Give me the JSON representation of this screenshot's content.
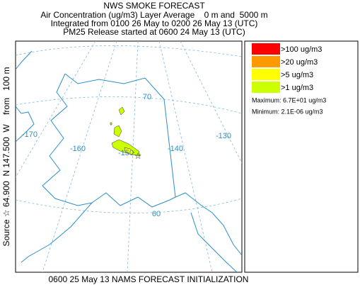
{
  "header": {
    "title": "NWS SMOKE FORECAST",
    "lines": [
      "Air Concentration (ug/m3) Layer Average    0 m and  5000 m",
      "Integrated from 0100 26 May to 0200 26 May 13 (UTC)",
      "PM25 Release started at 0600 24 May 13 (UTC)"
    ]
  },
  "side_label": "Source ☆ 64.900  N 147.500  W    from   100 m",
  "footer": "0600 25 May 13 NAMS FORECAST INITIALIZATION",
  "legend": {
    "items": [
      {
        "label": ">100 ug/m3",
        "color": "#ff0000"
      },
      {
        "label": ">20 ug/m3",
        "color": "#ff9900"
      },
      {
        "label": ">5 ug/m3",
        "color": "#ffff00"
      },
      {
        "label": ">1 ug/m3",
        "color": "#ccff00"
      }
    ],
    "maximum": "Maximum: 6.7E+01 ug/m3",
    "minimum": "Minimum: 2.1E-06 ug/m3"
  },
  "map": {
    "longitude_labels": [
      "-170",
      "-160",
      "-150",
      "-140",
      "-130"
    ],
    "latitude_labels": [
      "70",
      "60"
    ]
  }
}
